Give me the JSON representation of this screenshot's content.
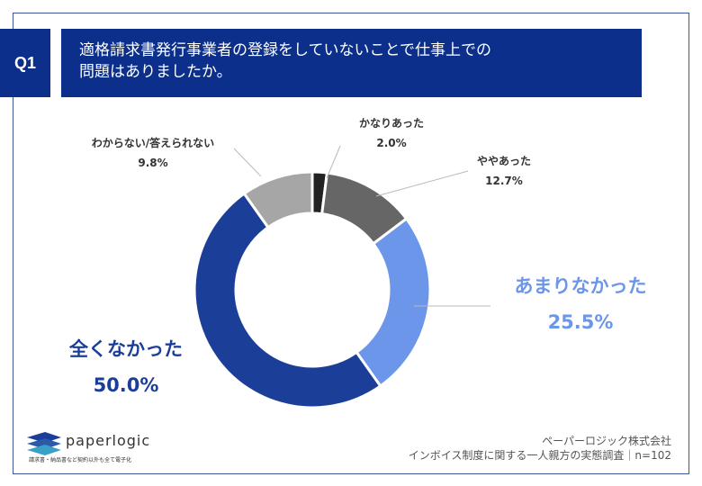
{
  "header": {
    "q_label": "Q1",
    "title_line1": "適格請求書発行事業者の登録をしていないことで仕事上での",
    "title_line2": "問題はありましたか。"
  },
  "chart_data": {
    "type": "pie",
    "donut": true,
    "start": "top",
    "direction": "clockwise",
    "categories": [
      "かなりあった",
      "ややあった",
      "あまりなかった",
      "全くなかった",
      "わからない/答えられない"
    ],
    "values": [
      2.0,
      12.7,
      25.5,
      50.0,
      9.8
    ],
    "value_labels": [
      "2.0%",
      "12.7%",
      "25.5%",
      "50.0%",
      "9.8%"
    ],
    "colors": [
      "#222222",
      "#666666",
      "#6c96e9",
      "#1b3f98",
      "#a6a6a6"
    ]
  },
  "footer": {
    "logo_text": "paperlogic",
    "logo_tagline": "請求書・納品書など契約以外も全て電子化",
    "company": "ペーパーロジック株式会社",
    "survey": "インボイス制度に関する一人親方の実態調査｜n=102"
  }
}
